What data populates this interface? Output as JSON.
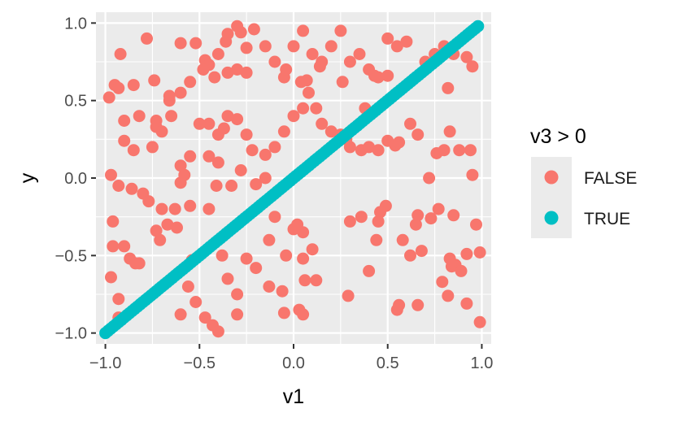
{
  "chart_data": {
    "type": "scatter",
    "title": "",
    "xlabel": "v1",
    "ylabel": "y",
    "xlim": [
      -1.05,
      1.05
    ],
    "ylim": [
      -1.07,
      1.07
    ],
    "x_ticks": [
      -1.0,
      -0.5,
      0.0,
      0.5,
      1.0
    ],
    "x_tick_labels": [
      "−1.0",
      "−0.5",
      "0.0",
      "0.5",
      "1.0"
    ],
    "y_ticks": [
      -1.0,
      -0.5,
      0.0,
      0.5,
      1.0
    ],
    "y_tick_labels": [
      "−1.0",
      "−0.5",
      "0.0",
      "0.5",
      "1.0"
    ],
    "grid": true,
    "legend": {
      "title": "v3 > 0",
      "position": "right"
    },
    "series": [
      {
        "name": "FALSE",
        "color": "#F8766D",
        "points": [
          [
            -0.98,
            0.52
          ],
          [
            -0.95,
            0.6
          ],
          [
            -0.93,
            0.58
          ],
          [
            -0.92,
            0.8
          ],
          [
            -0.85,
            0.6
          ],
          [
            -0.78,
            0.9
          ],
          [
            -0.74,
            0.63
          ],
          [
            -0.66,
            0.53
          ],
          [
            -0.66,
            0.5
          ],
          [
            -0.73,
            0.37
          ],
          [
            -0.73,
            0.33
          ],
          [
            -0.7,
            0.3
          ],
          [
            -0.75,
            0.2
          ],
          [
            -0.85,
            0.18
          ],
          [
            -0.9,
            0.24
          ],
          [
            -0.97,
            0.02
          ],
          [
            -0.93,
            -0.05
          ],
          [
            -0.86,
            -0.07
          ],
          [
            -0.8,
            -0.1
          ],
          [
            -0.77,
            -0.15
          ],
          [
            -0.96,
            -0.28
          ],
          [
            -0.96,
            -0.44
          ],
          [
            -0.9,
            -0.44
          ],
          [
            -0.97,
            -0.64
          ],
          [
            -0.93,
            -0.78
          ],
          [
            -0.93,
            -0.9
          ],
          [
            -0.87,
            -0.52
          ],
          [
            -0.84,
            -0.55
          ],
          [
            -0.73,
            -0.34
          ],
          [
            -0.71,
            -0.4
          ],
          [
            -0.67,
            -0.3
          ],
          [
            -0.62,
            -0.32
          ],
          [
            -0.7,
            -0.2
          ],
          [
            -0.63,
            -0.2
          ],
          [
            -0.55,
            -0.18
          ],
          [
            -0.6,
            -0.03
          ],
          [
            -0.58,
            0.02
          ],
          [
            -0.6,
            0.08
          ],
          [
            -0.55,
            0.14
          ],
          [
            -0.54,
            -0.53
          ],
          [
            -0.56,
            -0.7
          ],
          [
            -0.6,
            -0.88
          ],
          [
            -0.52,
            -0.8
          ],
          [
            -0.47,
            -0.9
          ],
          [
            -0.43,
            -0.95
          ],
          [
            -0.4,
            -0.99
          ],
          [
            -0.3,
            -0.88
          ],
          [
            -0.3,
            -0.75
          ],
          [
            -0.2,
            -0.58
          ],
          [
            -0.13,
            -0.7
          ],
          [
            -0.06,
            -0.73
          ],
          [
            -0.05,
            -0.87
          ],
          [
            0.03,
            -0.85
          ],
          [
            0.05,
            -0.88
          ],
          [
            0.06,
            -0.66
          ],
          [
            -0.04,
            -0.5
          ],
          [
            0.05,
            -0.52
          ],
          [
            0.1,
            -0.46
          ],
          [
            -0.13,
            -0.4
          ],
          [
            0.0,
            -0.33
          ],
          [
            0.05,
            -0.35
          ],
          [
            -0.1,
            -0.25
          ],
          [
            0.02,
            -0.3
          ],
          [
            -0.35,
            -0.65
          ],
          [
            -0.25,
            -0.52
          ],
          [
            -0.38,
            -0.5
          ],
          [
            -0.45,
            -0.2
          ],
          [
            -0.41,
            -0.05
          ],
          [
            -0.33,
            -0.05
          ],
          [
            -0.2,
            -0.04
          ],
          [
            -0.15,
            0.0
          ],
          [
            -0.28,
            0.05
          ],
          [
            -0.4,
            0.1
          ],
          [
            -0.45,
            0.14
          ],
          [
            -0.4,
            0.28
          ],
          [
            -0.37,
            0.32
          ],
          [
            -0.35,
            0.4
          ],
          [
            -0.45,
            0.35
          ],
          [
            -0.5,
            0.35
          ],
          [
            -0.3,
            0.38
          ],
          [
            -0.25,
            0.28
          ],
          [
            -0.22,
            0.18
          ],
          [
            -0.15,
            0.15
          ],
          [
            -0.1,
            0.2
          ],
          [
            -0.05,
            0.3
          ],
          [
            0.0,
            0.4
          ],
          [
            0.05,
            0.45
          ],
          [
            0.08,
            0.55
          ],
          [
            0.12,
            0.45
          ],
          [
            0.15,
            0.35
          ],
          [
            0.2,
            0.3
          ],
          [
            0.25,
            0.28
          ],
          [
            0.28,
            0.25
          ],
          [
            0.3,
            0.2
          ],
          [
            0.36,
            0.18
          ],
          [
            0.4,
            0.2
          ],
          [
            0.45,
            0.18
          ],
          [
            0.5,
            0.24
          ],
          [
            0.54,
            0.21
          ],
          [
            0.56,
            0.23
          ],
          [
            0.62,
            0.35
          ],
          [
            0.66,
            0.28
          ],
          [
            0.76,
            0.16
          ],
          [
            0.8,
            0.18
          ],
          [
            0.83,
            0.3
          ],
          [
            0.88,
            0.18
          ],
          [
            0.94,
            0.18
          ],
          [
            0.95,
            0.02
          ],
          [
            0.72,
            0.0
          ],
          [
            -0.6,
            0.87
          ],
          [
            -0.52,
            0.87
          ],
          [
            -0.47,
            0.76
          ],
          [
            -0.45,
            0.73
          ],
          [
            -0.4,
            0.8
          ],
          [
            -0.36,
            0.88
          ],
          [
            -0.35,
            0.93
          ],
          [
            -0.3,
            0.98
          ],
          [
            -0.28,
            0.94
          ],
          [
            -0.25,
            0.84
          ],
          [
            -0.21,
            0.96
          ],
          [
            -0.15,
            0.85
          ],
          [
            -0.1,
            0.75
          ],
          [
            -0.05,
            0.65
          ],
          [
            0.0,
            0.85
          ],
          [
            0.05,
            0.95
          ],
          [
            0.1,
            0.8
          ],
          [
            0.15,
            0.75
          ],
          [
            0.2,
            0.85
          ],
          [
            0.25,
            0.95
          ],
          [
            0.3,
            0.75
          ],
          [
            0.35,
            0.8
          ],
          [
            0.4,
            0.7
          ],
          [
            0.45,
            0.65
          ],
          [
            0.5,
            0.9
          ],
          [
            0.55,
            0.85
          ],
          [
            0.6,
            0.88
          ],
          [
            0.7,
            0.75
          ],
          [
            0.75,
            0.8
          ],
          [
            0.8,
            0.85
          ],
          [
            0.85,
            0.8
          ],
          [
            0.92,
            0.78
          ],
          [
            0.95,
            0.72
          ],
          [
            0.82,
            0.58
          ],
          [
            0.5,
            0.66
          ],
          [
            0.43,
            0.66
          ],
          [
            0.38,
            0.45
          ],
          [
            0.26,
            0.62
          ],
          [
            0.14,
            0.72
          ],
          [
            -0.04,
            0.7
          ],
          [
            0.04,
            0.62
          ],
          [
            0.07,
            0.63
          ],
          [
            -0.25,
            0.68
          ],
          [
            -0.3,
            0.7
          ],
          [
            -0.35,
            0.68
          ],
          [
            -0.42,
            0.65
          ],
          [
            -0.48,
            0.7
          ],
          [
            -0.55,
            0.62
          ],
          [
            -0.6,
            0.55
          ],
          [
            -0.65,
            0.4
          ],
          [
            -0.82,
            0.4
          ],
          [
            -0.9,
            0.37
          ],
          [
            0.12,
            -0.66
          ],
          [
            0.3,
            -0.28
          ],
          [
            0.45,
            -0.28
          ],
          [
            0.44,
            -0.4
          ],
          [
            0.4,
            -0.6
          ],
          [
            0.56,
            -0.82
          ],
          [
            0.55,
            -0.85
          ],
          [
            0.58,
            -0.4
          ],
          [
            0.65,
            -0.3
          ],
          [
            0.66,
            -0.24
          ],
          [
            0.73,
            -0.26
          ],
          [
            0.79,
            -0.67
          ],
          [
            0.82,
            -0.76
          ],
          [
            0.84,
            -0.57
          ],
          [
            0.86,
            -0.56
          ],
          [
            0.89,
            -0.6
          ],
          [
            0.92,
            -0.49
          ],
          [
            0.97,
            -0.3
          ],
          [
            0.99,
            -0.48
          ],
          [
            0.99,
            -0.93
          ],
          [
            0.92,
            -0.81
          ],
          [
            0.85,
            -0.24
          ],
          [
            0.83,
            -0.52
          ],
          [
            0.77,
            -0.2
          ],
          [
            0.68,
            -0.47
          ],
          [
            0.62,
            -0.5
          ],
          [
            0.66,
            -0.82
          ],
          [
            0.49,
            -0.18
          ],
          [
            0.46,
            -0.22
          ],
          [
            0.36,
            -0.25
          ],
          [
            0.29,
            -0.76
          ],
          [
            -0.82,
            -0.55
          ]
        ]
      },
      {
        "name": "TRUE",
        "color": "#00BFC4",
        "diagonal": {
          "from": -1.0,
          "to": 0.98,
          "count": 140
        }
      }
    ]
  }
}
